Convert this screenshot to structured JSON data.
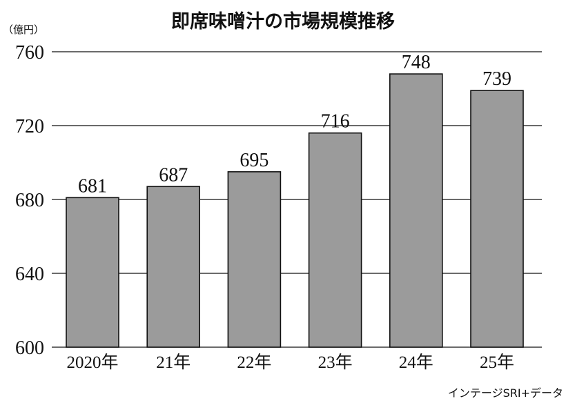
{
  "chart_data": {
    "type": "bar",
    "title": "即席味噌汁の市場規模推移",
    "ylabel": "（億円）",
    "xlabel": "",
    "categories": [
      "2020年",
      "21年",
      "22年",
      "23年",
      "24年",
      "25年"
    ],
    "values": [
      681,
      687,
      695,
      716,
      748,
      739
    ],
    "ylim": [
      600,
      760
    ],
    "yticks": [
      600,
      640,
      680,
      720,
      760
    ],
    "grid": true,
    "bar_color": "#9b9b9b",
    "source": "インテージSRI+データ"
  }
}
